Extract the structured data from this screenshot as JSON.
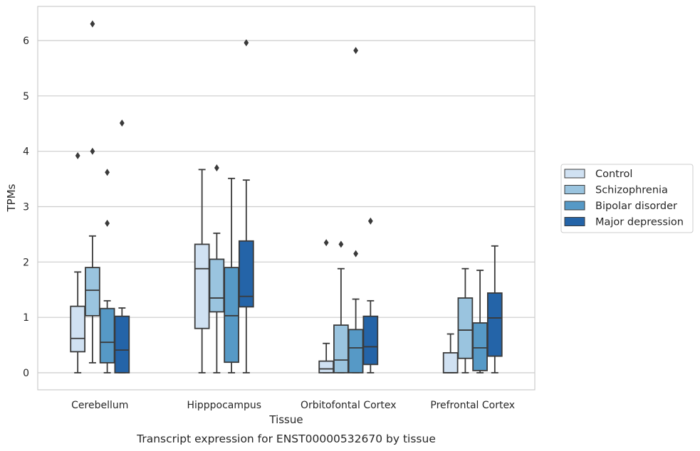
{
  "caption": "Transcript expression for ENST00000532670 by tissue",
  "chart_data": {
    "type": "boxplot",
    "title": "",
    "xlabel": "Tissue",
    "ylabel": "TPMs",
    "ylim": [
      -0.3,
      6.6
    ],
    "yticks": [
      "0",
      "1",
      "2",
      "3",
      "4",
      "5",
      "6"
    ],
    "grid": true,
    "legend_position": "right",
    "categories": [
      "Cerebellum",
      "Hipppocampus",
      "Orbitofontal Cortex",
      "Prefrontal Cortex"
    ],
    "series": [
      {
        "name": "Control",
        "color": "#d0e1f2",
        "boxes": [
          {
            "whislo": 0.0,
            "q1": 0.38,
            "med": 0.62,
            "q3": 1.2,
            "whishi": 1.82,
            "fliers": [
              3.92
            ]
          },
          {
            "whislo": 0.0,
            "q1": 0.8,
            "med": 1.88,
            "q3": 2.32,
            "whishi": 3.67,
            "fliers": []
          },
          {
            "whislo": 0.0,
            "q1": 0.0,
            "med": 0.07,
            "q3": 0.21,
            "whishi": 0.53,
            "fliers": [
              2.35
            ]
          },
          {
            "whislo": 0.0,
            "q1": 0.0,
            "med": 0.0,
            "q3": 0.36,
            "whishi": 0.7,
            "fliers": []
          }
        ]
      },
      {
        "name": "Schizophrenia",
        "color": "#9ac4df",
        "boxes": [
          {
            "whislo": 0.18,
            "q1": 1.03,
            "med": 1.49,
            "q3": 1.9,
            "whishi": 2.47,
            "fliers": [
              4.0,
              6.3
            ]
          },
          {
            "whislo": 0.0,
            "q1": 1.1,
            "med": 1.35,
            "q3": 2.05,
            "whishi": 2.52,
            "fliers": [
              3.7
            ]
          },
          {
            "whislo": 0.0,
            "q1": 0.0,
            "med": 0.23,
            "q3": 0.86,
            "whishi": 1.88,
            "fliers": [
              2.32
            ]
          },
          {
            "whislo": 0.0,
            "q1": 0.26,
            "med": 0.77,
            "q3": 1.35,
            "whishi": 1.88,
            "fliers": []
          }
        ]
      },
      {
        "name": "Bipolar disorder",
        "color": "#5699c6",
        "boxes": [
          {
            "whislo": 0.0,
            "q1": 0.18,
            "med": 0.55,
            "q3": 1.16,
            "whishi": 1.3,
            "fliers": [
              2.7,
              3.62
            ]
          },
          {
            "whislo": 0.0,
            "q1": 0.19,
            "med": 1.03,
            "q3": 1.9,
            "whishi": 3.51,
            "fliers": []
          },
          {
            "whislo": 0.0,
            "q1": 0.0,
            "med": 0.45,
            "q3": 0.78,
            "whishi": 1.33,
            "fliers": [
              2.15,
              5.82
            ]
          },
          {
            "whislo": 0.0,
            "q1": 0.04,
            "med": 0.45,
            "q3": 0.9,
            "whishi": 1.85,
            "fliers": []
          }
        ]
      },
      {
        "name": "Major depression",
        "color": "#2464a8",
        "boxes": [
          {
            "whislo": 0.0,
            "q1": 0.0,
            "med": 0.41,
            "q3": 1.02,
            "whishi": 1.17,
            "fliers": [
              4.51
            ]
          },
          {
            "whislo": 0.0,
            "q1": 1.19,
            "med": 1.38,
            "q3": 2.38,
            "whishi": 3.48,
            "fliers": [
              5.96
            ]
          },
          {
            "whislo": 0.0,
            "q1": 0.15,
            "med": 0.47,
            "q3": 1.02,
            "whishi": 1.3,
            "fliers": [
              2.74
            ]
          },
          {
            "whislo": 0.0,
            "q1": 0.3,
            "med": 0.99,
            "q3": 1.44,
            "whishi": 2.29,
            "fliers": []
          }
        ]
      }
    ]
  }
}
